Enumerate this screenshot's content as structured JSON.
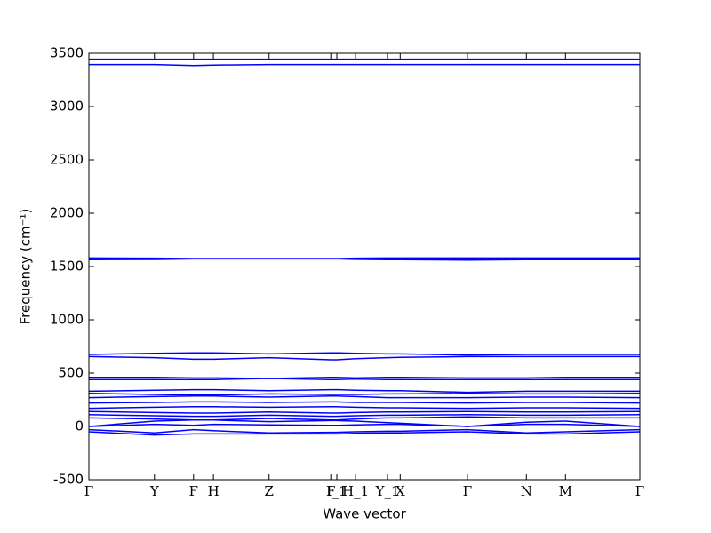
{
  "chart_data": {
    "type": "line",
    "x_label": "Wave vector",
    "y_label": "Frequency (cm⁻¹)",
    "xlim": [
      0,
      1
    ],
    "ylim": [
      -500,
      3500
    ],
    "yticks": [
      -500,
      0,
      500,
      1000,
      1500,
      2000,
      2500,
      3000,
      3500
    ],
    "xticks": [
      {
        "value": 0,
        "label": "Γ"
      },
      {
        "value": 0.119,
        "label": "Y"
      },
      {
        "value": 0.19,
        "label": "F"
      },
      {
        "value": 0.226,
        "label": "H"
      },
      {
        "value": 0.327,
        "label": "Z"
      },
      {
        "value": 0.439,
        "label": "F"
      },
      {
        "value": 0.45,
        "label": "I_1"
      },
      {
        "value": 0.484,
        "label": "H_1"
      },
      {
        "value": 0.542,
        "label": "Y_1"
      },
      {
        "value": 0.565,
        "label": "X"
      },
      {
        "value": 0.687,
        "label": "Γ"
      },
      {
        "value": 0.794,
        "label": "N"
      },
      {
        "value": 0.865,
        "label": "M"
      },
      {
        "value": 1,
        "label": "Γ"
      }
    ],
    "x": [
      0,
      0.119,
      0.19,
      0.226,
      0.327,
      0.439,
      0.45,
      0.484,
      0.542,
      0.565,
      0.687,
      0.794,
      0.865,
      1
    ],
    "series": [
      {
        "color": "#0000ff",
        "values": [
          3445,
          3445,
          3445,
          3445,
          3445,
          3445,
          3445,
          3445,
          3445,
          3445,
          3445,
          3445,
          3445,
          3445
        ]
      },
      {
        "color": "#0000ff",
        "values": [
          3395,
          3395,
          3385,
          3390,
          3395,
          3395,
          3395,
          3395,
          3395,
          3395,
          3395,
          3395,
          3395,
          3395
        ]
      },
      {
        "color": "#0000ff",
        "values": [
          1580,
          1578,
          1575,
          1575,
          1575,
          1575,
          1575,
          1578,
          1580,
          1580,
          1580,
          1580,
          1580,
          1580
        ]
      },
      {
        "color": "#0000ff",
        "values": [
          1565,
          1567,
          1572,
          1572,
          1572,
          1572,
          1572,
          1568,
          1565,
          1565,
          1560,
          1565,
          1565,
          1565
        ]
      },
      {
        "color": "#0000ff",
        "values": [
          675,
          685,
          690,
          690,
          680,
          690,
          690,
          685,
          680,
          680,
          670,
          675,
          675,
          675
        ]
      },
      {
        "color": "#0000ff",
        "values": [
          655,
          645,
          630,
          630,
          645,
          625,
          625,
          635,
          645,
          648,
          655,
          655,
          655,
          655
        ]
      },
      {
        "color": "#0000ff",
        "values": [
          460,
          460,
          455,
          455,
          450,
          460,
          460,
          455,
          460,
          460,
          455,
          455,
          460,
          460
        ]
      },
      {
        "color": "#0000ff",
        "values": [
          440,
          440,
          440,
          440,
          450,
          440,
          440,
          445,
          440,
          440,
          440,
          440,
          440,
          440
        ]
      },
      {
        "color": "#0000ff",
        "values": [
          330,
          340,
          345,
          345,
          335,
          345,
          345,
          340,
          335,
          335,
          320,
          330,
          330,
          330
        ]
      },
      {
        "color": "#0000ff",
        "values": [
          310,
          300,
          295,
          295,
          305,
          300,
          300,
          300,
          305,
          305,
          310,
          305,
          305,
          310
        ]
      },
      {
        "color": "#0000ff",
        "values": [
          270,
          280,
          285,
          285,
          275,
          285,
          285,
          280,
          270,
          270,
          270,
          275,
          275,
          270
        ]
      },
      {
        "color": "#0000ff",
        "values": [
          220,
          225,
          230,
          230,
          225,
          230,
          230,
          225,
          225,
          225,
          220,
          225,
          225,
          220
        ]
      },
      {
        "color": "#0000ff",
        "values": [
          170,
          180,
          185,
          185,
          180,
          185,
          185,
          180,
          175,
          175,
          170,
          175,
          175,
          170
        ]
      },
      {
        "color": "#0000ff",
        "values": [
          140,
          130,
          125,
          125,
          135,
          125,
          125,
          130,
          135,
          135,
          140,
          135,
          135,
          140
        ]
      },
      {
        "color": "#0000ff",
        "values": [
          110,
          100,
          95,
          95,
          105,
          95,
          95,
          100,
          105,
          105,
          110,
          105,
          105,
          110
        ]
      },
      {
        "color": "#0000ff",
        "values": [
          80,
          70,
          60,
          60,
          75,
          60,
          60,
          70,
          80,
          80,
          90,
          80,
          80,
          80
        ]
      },
      {
        "color": "#0000ff",
        "values": [
          0,
          50,
          60,
          60,
          45,
          55,
          55,
          50,
          35,
          30,
          0,
          40,
          50,
          0
        ]
      },
      {
        "color": "#0000ff",
        "values": [
          0,
          20,
          10,
          20,
          15,
          10,
          10,
          15,
          20,
          20,
          0,
          20,
          20,
          0
        ]
      },
      {
        "color": "#0000ff",
        "values": [
          -30,
          -60,
          -30,
          -40,
          -60,
          -55,
          -55,
          -50,
          -45,
          -45,
          -30,
          -60,
          -50,
          -30
        ]
      },
      {
        "color": "#0000ff",
        "values": [
          -50,
          -80,
          -70,
          -70,
          -70,
          -70,
          -70,
          -65,
          -60,
          -60,
          -50,
          -70,
          -70,
          -50
        ]
      }
    ]
  }
}
